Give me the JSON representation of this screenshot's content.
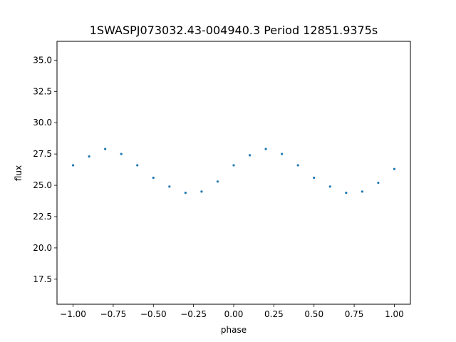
{
  "chart_data": {
    "type": "scatter",
    "title": "1SWASPJ073032.43-004940.3 Period 12851.9375s",
    "xlabel": "phase",
    "ylabel": "flux",
    "xlim": [
      -1.1,
      1.1
    ],
    "ylim": [
      15.5,
      36.5
    ],
    "xticks": [
      -1.0,
      -0.75,
      -0.5,
      -0.25,
      0.0,
      0.25,
      0.5,
      0.75,
      1.0
    ],
    "xtick_labels": [
      "−1.00",
      "−0.75",
      "−0.50",
      "−0.25",
      "0.00",
      "0.25",
      "0.50",
      "0.75",
      "1.00"
    ],
    "yticks": [
      17.5,
      20.0,
      22.5,
      25.0,
      27.5,
      30.0,
      32.5,
      35.0
    ],
    "ytick_labels": [
      "17.5",
      "20.0",
      "22.5",
      "25.0",
      "27.5",
      "30.0",
      "32.5",
      "35.0"
    ],
    "grid": false,
    "series": [
      {
        "marker_color": "#1f77b4",
        "x": [
          -1.0,
          -0.9,
          -0.8,
          -0.7,
          -0.6,
          -0.5,
          -0.4,
          -0.3,
          -0.2,
          -0.1,
          0.0,
          0.1,
          0.2,
          0.3,
          0.4,
          0.5,
          0.6,
          0.7,
          0.8,
          0.9,
          1.0
        ],
        "y": [
          26.6,
          27.3,
          27.9,
          27.5,
          26.6,
          25.6,
          24.9,
          24.4,
          24.5,
          25.3,
          26.6,
          27.4,
          27.9,
          27.5,
          26.6,
          25.6,
          24.9,
          24.4,
          24.5,
          25.2,
          26.3
        ]
      }
    ]
  }
}
